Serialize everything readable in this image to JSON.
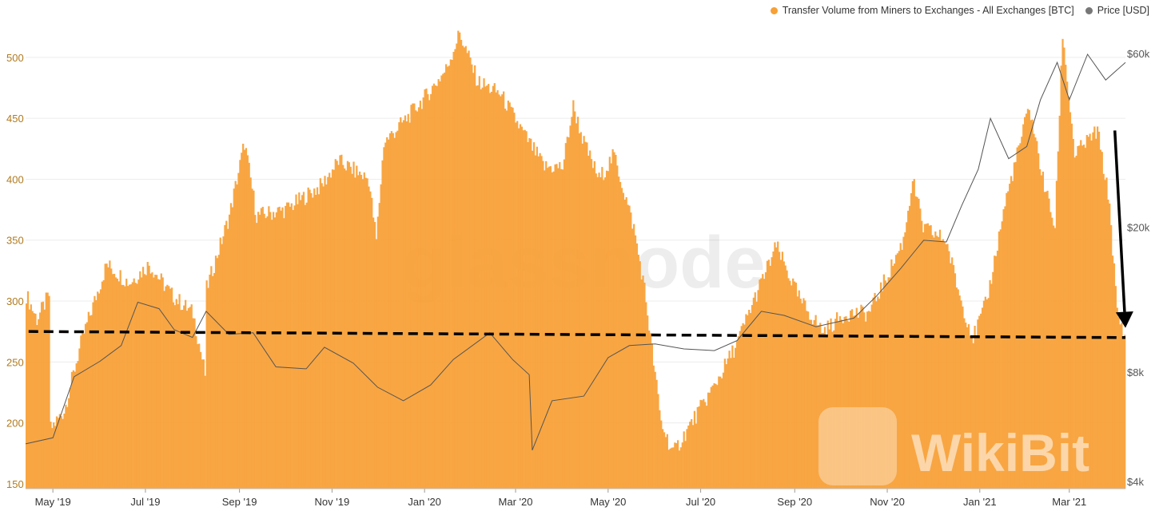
{
  "chart_data": {
    "type": "bar",
    "title": "",
    "legend": [
      {
        "name": "Transfer Volume from Miners to Exchanges - All Exchanges [BTC]",
        "color": "#f7a035"
      },
      {
        "name": "Price [USD]",
        "color": "#777777"
      }
    ],
    "legend_position": "top-right",
    "grid": true,
    "watermarks": [
      "glassnode",
      "WikiBit"
    ],
    "y_left": {
      "ticks": [
        150,
        200,
        250,
        300,
        350,
        400,
        450,
        500
      ],
      "range": [
        146,
        534
      ],
      "color": "#b07a1f"
    },
    "y_right": {
      "scale": "log",
      "ticks": [
        4000,
        8000,
        20000,
        60000
      ],
      "tick_labels": [
        "$4k",
        "$8k",
        "$20k",
        "$60k"
      ]
    },
    "x_ticks": [
      "May '19",
      "Jul '19",
      "Sep '19",
      "Nov '19",
      "Jan '20",
      "Mar '20",
      "May '20",
      "Jul '20",
      "Sep '20",
      "Nov '20",
      "Jan '21",
      "Mar '21"
    ],
    "x_range": [
      "2019-04-13",
      "2021-04-07"
    ],
    "volume_keypoints": [
      [
        "2019-04-13",
        305
      ],
      [
        "2019-04-20",
        285
      ],
      [
        "2019-04-28",
        305
      ],
      [
        "2019-04-29",
        195
      ],
      [
        "2019-05-08",
        210
      ],
      [
        "2019-05-20",
        270
      ],
      [
        "2019-06-05",
        330
      ],
      [
        "2019-06-20",
        315
      ],
      [
        "2019-07-03",
        330
      ],
      [
        "2019-07-18",
        305
      ],
      [
        "2019-08-01",
        290
      ],
      [
        "2019-08-09",
        240
      ],
      [
        "2019-08-10",
        310
      ],
      [
        "2019-08-25",
        370
      ],
      [
        "2019-09-04",
        430
      ],
      [
        "2019-09-12",
        370
      ],
      [
        "2019-10-01",
        375
      ],
      [
        "2019-10-25",
        395
      ],
      [
        "2019-11-05",
        415
      ],
      [
        "2019-11-25",
        400
      ],
      [
        "2019-11-30",
        350
      ],
      [
        "2019-12-05",
        430
      ],
      [
        "2019-12-20",
        450
      ],
      [
        "2020-01-03",
        470
      ],
      [
        "2020-01-15",
        490
      ],
      [
        "2020-01-24",
        520
      ],
      [
        "2020-02-05",
        480
      ],
      [
        "2020-02-20",
        470
      ],
      [
        "2020-03-05",
        440
      ],
      [
        "2020-03-20",
        410
      ],
      [
        "2020-04-01",
        410
      ],
      [
        "2020-04-08",
        460
      ],
      [
        "2020-04-15",
        430
      ],
      [
        "2020-04-25",
        400
      ],
      [
        "2020-05-05",
        420
      ],
      [
        "2020-05-18",
        360
      ],
      [
        "2020-05-25",
        310
      ],
      [
        "2020-06-05",
        200
      ],
      [
        "2020-06-13",
        175
      ],
      [
        "2020-06-25",
        200
      ],
      [
        "2020-07-10",
        230
      ],
      [
        "2020-07-25",
        265
      ],
      [
        "2020-08-05",
        300
      ],
      [
        "2020-08-20",
        345
      ],
      [
        "2020-09-05",
        300
      ],
      [
        "2020-09-20",
        275
      ],
      [
        "2020-10-05",
        290
      ],
      [
        "2020-10-20",
        290
      ],
      [
        "2020-11-01",
        320
      ],
      [
        "2020-11-12",
        350
      ],
      [
        "2020-11-18",
        400
      ],
      [
        "2020-11-25",
        360
      ],
      [
        "2020-12-10",
        350
      ],
      [
        "2020-12-20",
        300
      ],
      [
        "2020-12-28",
        270
      ],
      [
        "2021-01-06",
        300
      ],
      [
        "2021-01-18",
        380
      ],
      [
        "2021-01-26",
        420
      ],
      [
        "2021-02-03",
        460
      ],
      [
        "2021-02-12",
        400
      ],
      [
        "2021-02-20",
        360
      ],
      [
        "2021-02-25",
        520
      ],
      [
        "2021-03-05",
        420
      ],
      [
        "2021-03-20",
        440
      ],
      [
        "2021-03-28",
        380
      ],
      [
        "2021-04-02",
        290
      ],
      [
        "2021-04-07",
        270
      ]
    ],
    "price_keypoints": [
      [
        "2019-04-13",
        5100
      ],
      [
        "2019-05-01",
        5300
      ],
      [
        "2019-05-15",
        7800
      ],
      [
        "2019-06-01",
        8600
      ],
      [
        "2019-06-15",
        9500
      ],
      [
        "2019-06-26",
        12500
      ],
      [
        "2019-07-10",
        12000
      ],
      [
        "2019-07-20",
        10500
      ],
      [
        "2019-08-01",
        10000
      ],
      [
        "2019-08-10",
        11800
      ],
      [
        "2019-08-25",
        10200
      ],
      [
        "2019-09-10",
        10300
      ],
      [
        "2019-09-25",
        8300
      ],
      [
        "2019-10-15",
        8200
      ],
      [
        "2019-10-27",
        9400
      ],
      [
        "2019-11-15",
        8500
      ],
      [
        "2019-12-01",
        7300
      ],
      [
        "2019-12-18",
        6700
      ],
      [
        "2020-01-05",
        7400
      ],
      [
        "2020-01-20",
        8700
      ],
      [
        "2020-02-13",
        10300
      ],
      [
        "2020-02-28",
        8700
      ],
      [
        "2020-03-10",
        7900
      ],
      [
        "2020-03-12",
        4900
      ],
      [
        "2020-03-25",
        6700
      ],
      [
        "2020-04-15",
        6900
      ],
      [
        "2020-05-01",
        8800
      ],
      [
        "2020-05-15",
        9500
      ],
      [
        "2020-06-01",
        9600
      ],
      [
        "2020-06-20",
        9300
      ],
      [
        "2020-07-10",
        9200
      ],
      [
        "2020-07-25",
        9800
      ],
      [
        "2020-08-10",
        11800
      ],
      [
        "2020-08-25",
        11500
      ],
      [
        "2020-09-15",
        10700
      ],
      [
        "2020-10-10",
        11300
      ],
      [
        "2020-10-25",
        13000
      ],
      [
        "2020-11-10",
        15500
      ],
      [
        "2020-11-25",
        18500
      ],
      [
        "2020-12-10",
        18300
      ],
      [
        "2020-12-20",
        23000
      ],
      [
        "2020-12-31",
        29000
      ],
      [
        "2021-01-08",
        40000
      ],
      [
        "2021-01-20",
        31000
      ],
      [
        "2021-02-01",
        33500
      ],
      [
        "2021-02-10",
        45000
      ],
      [
        "2021-02-21",
        57000
      ],
      [
        "2021-03-01",
        45000
      ],
      [
        "2021-03-13",
        60000
      ],
      [
        "2021-03-25",
        51000
      ],
      [
        "2021-04-07",
        57000
      ]
    ],
    "annotations": [
      {
        "type": "dashed-line",
        "from": [
          "2019-04-15",
          275
        ],
        "to": [
          "2021-04-07",
          270
        ]
      },
      {
        "type": "arrow",
        "from": [
          "2021-03-31",
          440
        ],
        "to": [
          "2021-04-07",
          278
        ]
      }
    ]
  }
}
